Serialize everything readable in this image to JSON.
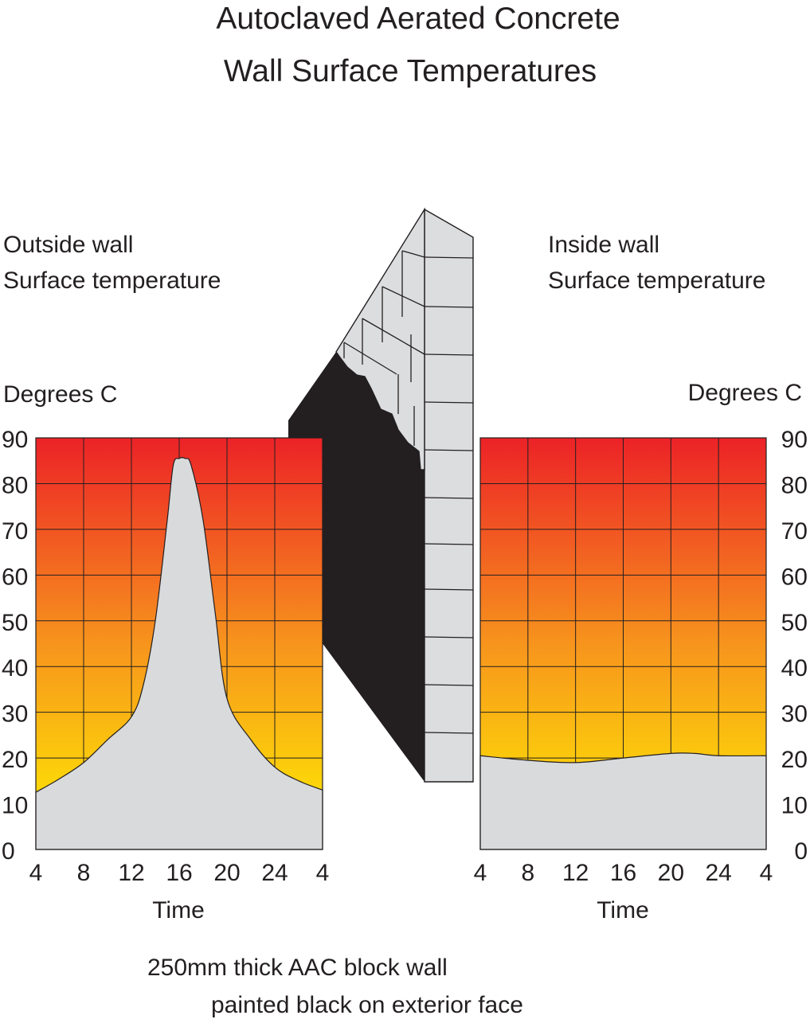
{
  "title_line1": "Autoclaved Aerated Concrete",
  "title_line2": "Wall Surface Temperatures",
  "left_panel": {
    "heading_line1": "Outside wall",
    "heading_line2": "Surface temperature",
    "y_label": "Degrees C",
    "x_label": "Time"
  },
  "right_panel": {
    "heading_line1": "Inside wall",
    "heading_line2": "Surface temperature",
    "y_label": "Degrees C",
    "x_label": "Time"
  },
  "caption_line1": "250mm thick AAC block wall",
  "caption_line2": "painted black on exterior face",
  "colors": {
    "gradient_top": "#ec2227",
    "gradient_mid": "#f7941d",
    "gradient_bottom": "#fff200",
    "curve_fill": "#d9dadc",
    "wall_black": "#231f20",
    "wall_block": "#dcdddf",
    "grid_line": "#231f20"
  },
  "chart_data": [
    {
      "type": "area",
      "name": "Outside wall",
      "x_ticks": [
        "4",
        "8",
        "12",
        "16",
        "20",
        "24",
        "4"
      ],
      "y_ticks": [
        "0",
        "10",
        "20",
        "30",
        "40",
        "50",
        "60",
        "70",
        "80",
        "90"
      ],
      "ylim": [
        0,
        90
      ],
      "x_hours": [
        4,
        6,
        8,
        10,
        12,
        13,
        14,
        15,
        15.5,
        16,
        16.5,
        17,
        18,
        19,
        20,
        22,
        24,
        26,
        28
      ],
      "values": [
        12.5,
        15.5,
        19,
        24,
        29,
        36,
        50,
        72,
        84,
        85.5,
        85.5,
        84,
        72,
        52,
        33,
        24,
        18,
        15,
        13
      ]
    },
    {
      "type": "area",
      "name": "Inside wall",
      "x_ticks": [
        "4",
        "8",
        "12",
        "16",
        "20",
        "24",
        "4"
      ],
      "y_ticks": [
        "0",
        "10",
        "20",
        "30",
        "40",
        "50",
        "60",
        "70",
        "80",
        "90"
      ],
      "ylim": [
        0,
        90
      ],
      "x_hours": [
        4,
        8,
        12,
        16,
        20,
        22,
        24,
        28
      ],
      "values": [
        20.5,
        19.5,
        19,
        20,
        21,
        21,
        20.5,
        20.5
      ]
    }
  ]
}
